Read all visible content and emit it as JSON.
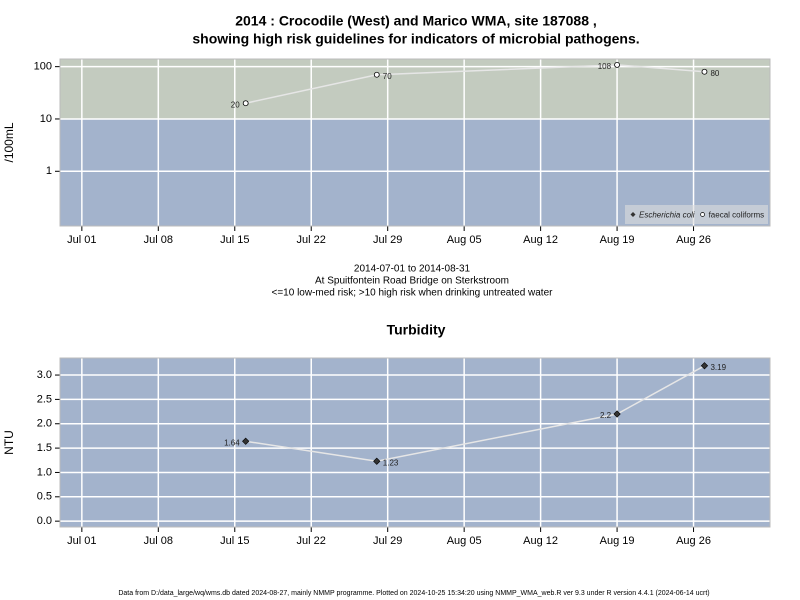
{
  "chart_data": [
    {
      "type": "line",
      "title": "2014 : Crocodile (West) and Marico WMA, site 187088 ,",
      "subtitle": "showing high risk guidelines for indicators of microbial pathogens.",
      "y_label": "/100mL",
      "log_y": true,
      "threshold": 10,
      "band_colors": {
        "above": "#c3cbbf",
        "below": "#a3b3cc"
      },
      "x": [
        "2014-07-16",
        "2014-07-28",
        "2014-08-19",
        "2014-08-27"
      ],
      "xlim": [
        "2014-06-29",
        "2014-09-02"
      ],
      "xticks": [
        {
          "value": "2014-07-01",
          "label": "Jul 01"
        },
        {
          "value": "2014-07-08",
          "label": "Jul 08"
        },
        {
          "value": "2014-07-15",
          "label": "Jul 15"
        },
        {
          "value": "2014-07-22",
          "label": "Jul 22"
        },
        {
          "value": "2014-07-29",
          "label": "Jul 29"
        },
        {
          "value": "2014-08-05",
          "label": "Aug 05"
        },
        {
          "value": "2014-08-12",
          "label": "Aug 12"
        },
        {
          "value": "2014-08-19",
          "label": "Aug 19"
        },
        {
          "value": "2014-08-26",
          "label": "Aug 26"
        }
      ],
      "ylim": [
        0.09,
        140
      ],
      "yticks": [
        1,
        10,
        100
      ],
      "grid": true,
      "legend": "bottomright",
      "series": [
        {
          "name": "Escherichia coli",
          "marker": "diamond-filled",
          "color": "#333333",
          "values": [
            null,
            null,
            null,
            null
          ]
        },
        {
          "name": "faecal coliforms",
          "marker": "circle-open",
          "color": "#e6e6e6",
          "values": [
            20,
            70,
            108,
            80
          ]
        }
      ],
      "notes": [
        "2014-07-01 to 2014-08-31",
        "At Spuitfontein Road Bridge on Sterkstroom",
        "<=10 low-med risk; >10 high risk when drinking untreated water"
      ]
    },
    {
      "type": "line",
      "title": "Turbidity",
      "y_label": "NTU",
      "log_y": false,
      "band_colors": {
        "above": "#a3b3cc",
        "below": "#a3b3cc"
      },
      "x": [
        "2014-07-16",
        "2014-07-28",
        "2014-08-19",
        "2014-08-27"
      ],
      "xlim": [
        "2014-06-29",
        "2014-09-02"
      ],
      "xticks": [
        {
          "value": "2014-07-01",
          "label": "Jul 01"
        },
        {
          "value": "2014-07-08",
          "label": "Jul 08"
        },
        {
          "value": "2014-07-15",
          "label": "Jul 15"
        },
        {
          "value": "2014-07-22",
          "label": "Jul 22"
        },
        {
          "value": "2014-07-29",
          "label": "Jul 29"
        },
        {
          "value": "2014-08-05",
          "label": "Aug 05"
        },
        {
          "value": "2014-08-12",
          "label": "Aug 12"
        },
        {
          "value": "2014-08-19",
          "label": "Aug 19"
        },
        {
          "value": "2014-08-26",
          "label": "Aug 26"
        }
      ],
      "ylim": [
        -0.12,
        3.35
      ],
      "yticks": [
        {
          "value": 0,
          "label": "0.0"
        },
        0.5,
        {
          "value": 1,
          "label": "1.0"
        },
        1.5,
        {
          "value": 2,
          "label": "2.0"
        },
        2.5,
        {
          "value": 3,
          "label": "3.0"
        }
      ],
      "grid": true,
      "series": [
        {
          "name": "Turbidity",
          "marker": "diamond-filled",
          "color": "#e6e6e6",
          "values": [
            1.64,
            1.23,
            2.2,
            3.19
          ]
        }
      ]
    }
  ],
  "footer": "Data from D:/data_large/wq/wms.db dated 2024-08-27, mainly NMMP programme. Plotted on 2024-10-25 15:34:20 using NMMP_WMA_web.R ver 9.3 under R version 4.4.1 (2024-06-14 ucrt)"
}
